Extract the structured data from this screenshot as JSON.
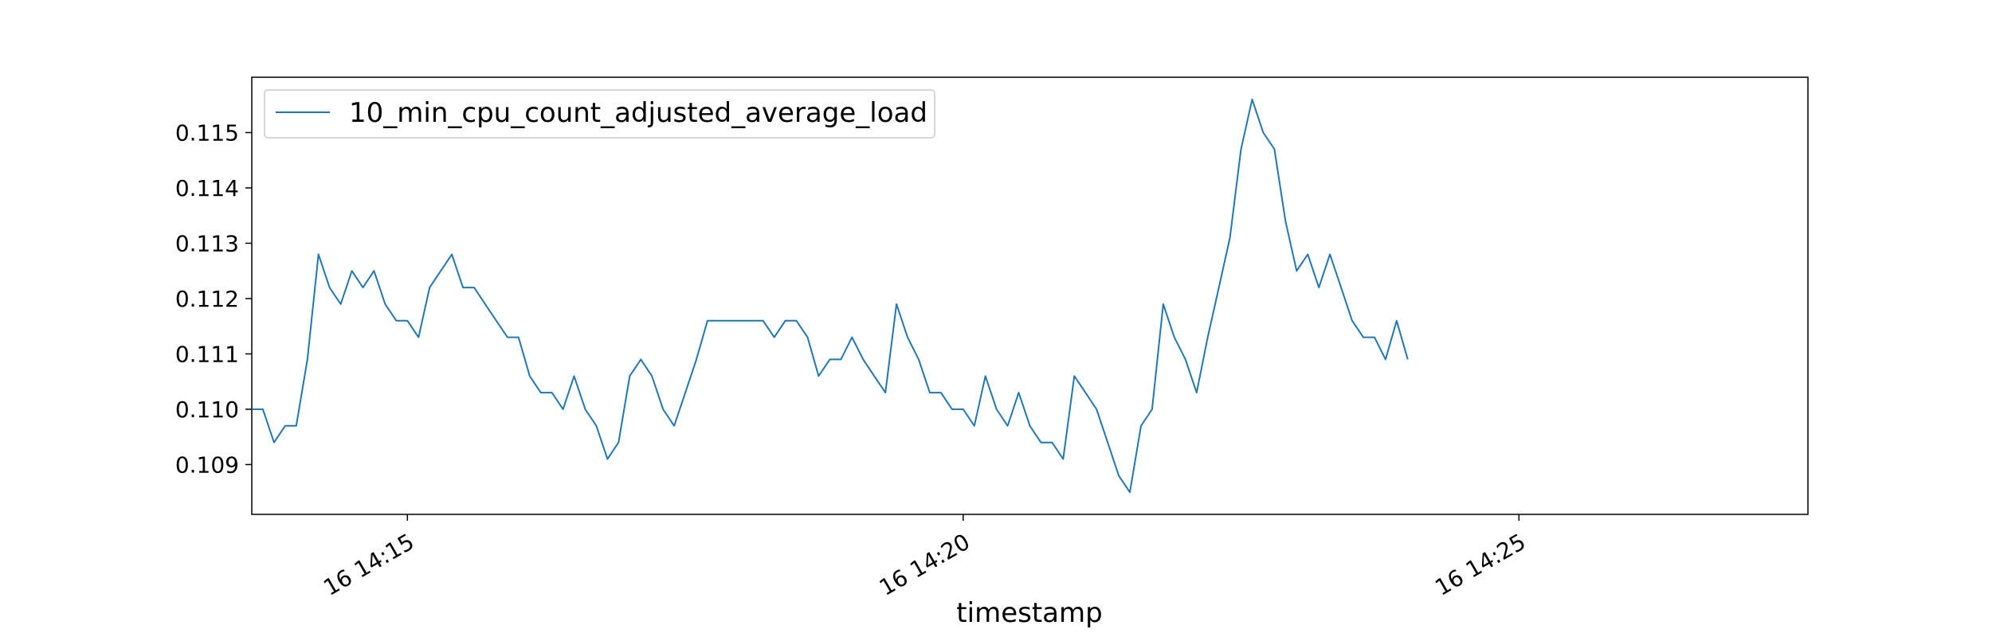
{
  "chart_data": {
    "type": "line",
    "title": "",
    "xlabel": "timestamp",
    "ylabel": "",
    "x_start_minutes": 13.6,
    "x_step_minutes": 0.1,
    "xlim": [
      13.6,
      27.6
    ],
    "ylim": [
      0.1081,
      0.116
    ],
    "yticks": [
      0.109,
      0.11,
      0.111,
      0.112,
      0.113,
      0.114,
      0.115
    ],
    "ytick_labels": [
      "0.109",
      "0.110",
      "0.111",
      "0.112",
      "0.113",
      "0.114",
      "0.115"
    ],
    "xticks": [
      15,
      20,
      25
    ],
    "xtick_labels": [
      "16 14:15",
      "16 14:20",
      "16 14:25"
    ],
    "grid": false,
    "legend_position": "upper-left",
    "series": [
      {
        "name": "10_min_cpu_count_adjusted_average_load",
        "color": "#1f77b4",
        "values": [
          0.11,
          0.11,
          0.1094,
          0.1097,
          0.1097,
          0.1109,
          0.1128,
          0.1122,
          0.1119,
          0.1125,
          0.1122,
          0.1125,
          0.1119,
          0.1116,
          0.1116,
          0.1113,
          0.1122,
          0.1125,
          0.1128,
          0.1122,
          0.1122,
          0.1119,
          0.1116,
          0.1113,
          0.1113,
          0.1106,
          0.1103,
          0.1103,
          0.11,
          0.1106,
          0.11,
          0.1097,
          0.1091,
          0.1094,
          0.1106,
          0.1109,
          0.1106,
          0.11,
          0.1097,
          0.1103,
          0.1109,
          0.1116,
          0.1116,
          0.1116,
          0.1116,
          0.1116,
          0.1116,
          0.1113,
          0.1116,
          0.1116,
          0.1113,
          0.1106,
          0.1109,
          0.1109,
          0.1113,
          0.1109,
          0.1106,
          0.1103,
          0.1119,
          0.1113,
          0.1109,
          0.1103,
          0.1103,
          0.11,
          0.11,
          0.1097,
          0.1106,
          0.11,
          0.1097,
          0.1103,
          0.1097,
          0.1094,
          0.1094,
          0.1091,
          0.1106,
          0.1103,
          0.11,
          0.1094,
          0.1088,
          0.1085,
          0.1097,
          0.11,
          0.1119,
          0.1113,
          0.1109,
          0.1103,
          0.1113,
          0.1122,
          0.1131,
          0.1147,
          0.1156,
          0.115,
          0.1147,
          0.1134,
          0.1125,
          0.1128,
          0.1122,
          0.1128,
          0.1122,
          0.1116,
          0.1113,
          0.1113,
          0.1109,
          0.1116,
          0.1109
        ]
      }
    ]
  }
}
